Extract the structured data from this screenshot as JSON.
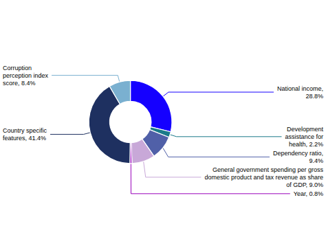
{
  "chart_data": {
    "type": "donut",
    "categories": [
      "National income,\n28.8%",
      "Development\nassistance for\nhealth, 2.2%",
      "Dependency ratio,\n9.4%",
      "General government spending per gross\ndomestic product and tax revenue as share\nof GDP, 9.0%",
      "Year, 0.8%",
      "Country specific\nfeatures, 41.4%",
      "Corruption\nperception index\nscore, 8.4%"
    ],
    "values": [
      28.8,
      2.2,
      9.4,
      9.0,
      0.8,
      41.4,
      8.4
    ],
    "colors": [
      "#1500ff",
      "#1a7a8a",
      "#5060a8",
      "#c8a8d8",
      "#9900bb",
      "#1e3060",
      "#7ab0d0"
    ],
    "legend": false
  }
}
